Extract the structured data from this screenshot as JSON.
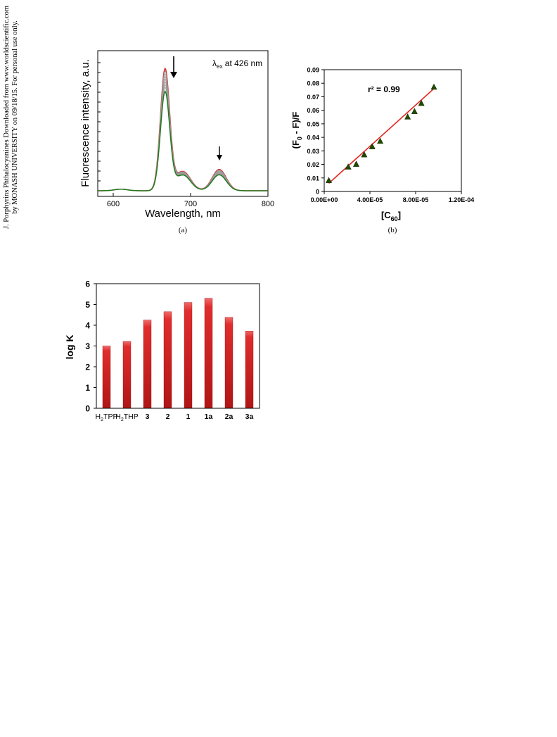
{
  "side_note": {
    "line1": "J. Porphyrins Phthalocyanines Downloaded from www.worldscientific.com",
    "line2": "by MONASH UNIVERSITY on 09/18/15. For personal use only."
  },
  "colors": {
    "red": "#d42b2b",
    "green": "#1f7a1f",
    "gray": "#9a9a9a",
    "bar": "#cc1f1f",
    "marker": "#1f4d00"
  },
  "chart_data": [
    {
      "type": "line",
      "panel_label": "(a)",
      "xlabel": "Wavelength, nm",
      "ylabel": "Fluorescence intensity, a.u.",
      "annotation": {
        "lambda": "λ",
        "sub": "ex",
        "text": " at 426 nm"
      },
      "xlim": [
        580,
        800
      ],
      "ylim": [
        0,
        1
      ],
      "x_ticks": [
        "600",
        "700",
        "800"
      ],
      "peak1_x": 667,
      "peak2_x": 737,
      "series": [
        {
          "color": "#d42b2b",
          "peak1": 0.91,
          "peak2": 0.16
        },
        {
          "color": "#9a9a9a",
          "peak1": 0.89,
          "peak2": 0.155
        },
        {
          "color": "#9a9a9a",
          "peak1": 0.87,
          "peak2": 0.15
        },
        {
          "color": "#9a9a9a",
          "peak1": 0.85,
          "peak2": 0.145
        },
        {
          "color": "#9a9a9a",
          "peak1": 0.83,
          "peak2": 0.14
        },
        {
          "color": "#9a9a9a",
          "peak1": 0.81,
          "peak2": 0.135
        },
        {
          "color": "#9a9a9a",
          "peak1": 0.79,
          "peak2": 0.13
        },
        {
          "color": "#9a9a9a",
          "peak1": 0.77,
          "peak2": 0.125
        },
        {
          "color": "#1f7a1f",
          "peak1": 0.74,
          "peak2": 0.12
        }
      ]
    },
    {
      "type": "scatter",
      "panel_label": "(b)",
      "ylabel": "(F0 - F)/F",
      "ylabel_parts": {
        "a": "(F",
        "sub": "0",
        "b": " - F)/F"
      },
      "xlabel_parts": {
        "a": "[C",
        "sub": "60",
        "b": "]"
      },
      "annotation": "r² = 0.99",
      "xlim": [
        0,
        0.00012
      ],
      "ylim": [
        0,
        0.09
      ],
      "x_ticks": [
        {
          "value": 0,
          "label": "0.00E+00"
        },
        {
          "value": 4e-05,
          "label": "4.00E-05"
        },
        {
          "value": 8e-05,
          "label": "8.00E-05"
        },
        {
          "value": 0.00012,
          "label": "1.20E-04"
        }
      ],
      "y_ticks": [
        {
          "value": 0,
          "label": "0"
        },
        {
          "value": 0.01,
          "label": "0.01"
        },
        {
          "value": 0.02,
          "label": "0.02"
        },
        {
          "value": 0.03,
          "label": "0.03"
        },
        {
          "value": 0.04,
          "label": "0.04"
        },
        {
          "value": 0.05,
          "label": "0.05"
        },
        {
          "value": 0.06,
          "label": "0.06"
        },
        {
          "value": 0.07,
          "label": "0.07"
        },
        {
          "value": 0.08,
          "label": "0.08"
        },
        {
          "value": 0.09,
          "label": "0.09"
        }
      ],
      "points": [
        {
          "x": 4e-06,
          "y": 0.008
        },
        {
          "x": 2.1e-05,
          "y": 0.018
        },
        {
          "x": 2.8e-05,
          "y": 0.02
        },
        {
          "x": 3.5e-05,
          "y": 0.027
        },
        {
          "x": 4.2e-05,
          "y": 0.033
        },
        {
          "x": 4.9e-05,
          "y": 0.037
        },
        {
          "x": 7.3e-05,
          "y": 0.055
        },
        {
          "x": 7.9e-05,
          "y": 0.059
        },
        {
          "x": 8.5e-05,
          "y": 0.065
        },
        {
          "x": 9.6e-05,
          "y": 0.077
        }
      ],
      "fit": {
        "x": [
          4e-06,
          9.6e-05
        ],
        "y": [
          0.006,
          0.076
        ]
      }
    },
    {
      "type": "bar",
      "ylabel": "log K",
      "ylim": [
        0,
        6
      ],
      "y_ticks": [
        "0",
        "1",
        "2",
        "3",
        "4",
        "5",
        "6"
      ],
      "categories": [
        {
          "main": "H",
          "sub": "2",
          "rest": "TPP"
        },
        {
          "main": "H",
          "sub": "2",
          "rest": "THP"
        },
        {
          "main": "3",
          "sub": "",
          "rest": ""
        },
        {
          "main": "2",
          "sub": "",
          "rest": ""
        },
        {
          "main": "1",
          "sub": "",
          "rest": ""
        },
        {
          "main": "1a",
          "sub": "",
          "rest": ""
        },
        {
          "main": "2a",
          "sub": "",
          "rest": ""
        },
        {
          "main": "3a",
          "sub": "",
          "rest": ""
        }
      ],
      "values": [
        3.0,
        3.22,
        4.25,
        4.65,
        5.1,
        5.3,
        4.38,
        3.72
      ]
    }
  ]
}
